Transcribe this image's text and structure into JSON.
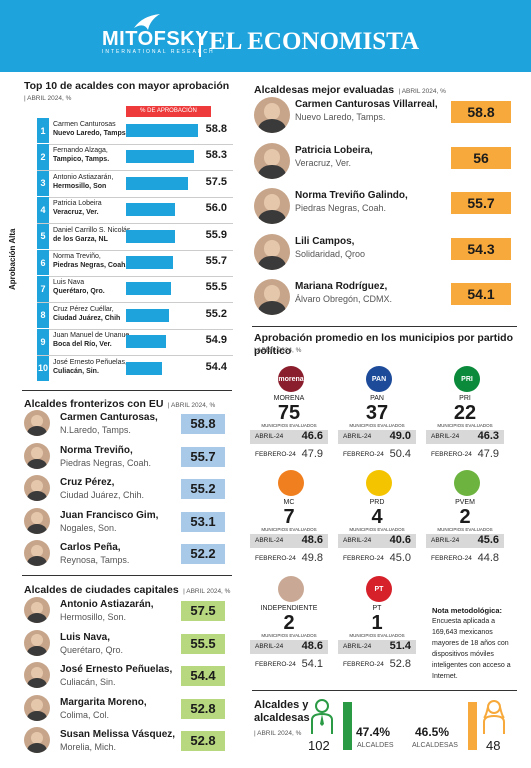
{
  "header": {
    "brand_left": "MITOFSKY",
    "brand_left_sub": "INTERNATIONAL RESEARCH",
    "brand_right": "EL ECONOMISTA"
  },
  "top10": {
    "title": "Top 10 de acaldes con mayor aprobación",
    "subtitle": "ABRIL 2024, %",
    "bar_label": "% DE APROBACIÓN",
    "axis_label": "Aprobación Alta",
    "accent": "#1ea3dc"
  },
  "chart_data": {
    "type": "bar",
    "categories": [
      "Carmen Canturosas, Nuevo Laredo, Tamps.",
      "Fernando Alzaga, Tampico, Tamps.",
      "Antonio Astiazarán, Hermosillo, Son",
      "Patricia Lobeira, Veracruz, Ver.",
      "Daniel Carrillo S. Nicolás, de los Garza, NL",
      "Norma Treviño, Piedras Negras, Coah.",
      "Luis Nava, Querétaro, Qro.",
      "Cruz Pérez Cuéllar, Ciudad Juárez, Chih",
      "Juan Manuel de Unanue, Boca del Río, Ver.",
      "José Ernesto Peñuelas, Culiacán, Sin."
    ],
    "values": [
      58.8,
      58.3,
      57.5,
      56.0,
      55.9,
      55.7,
      55.5,
      55.2,
      54.9,
      54.4
    ],
    "title": "Top 10 de acaldes con mayor aprobación",
    "ylabel": "Aprobación Alta"
  },
  "top10_rows": [
    {
      "rank": "1",
      "line1": "Carmen Canturosas",
      "line2": "Nuevo Laredo, Tamps.",
      "value": "58.8"
    },
    {
      "rank": "2",
      "line1": "Fernando Alzaga,",
      "line2": "Tampico, Tamps.",
      "value": "58.3"
    },
    {
      "rank": "3",
      "line1": "Antonio Astiazarán,",
      "line2": "Hermosillo, Son",
      "value": "57.5"
    },
    {
      "rank": "4",
      "line1": "Patricia Lobeira",
      "line2": "Veracruz, Ver.",
      "value": "56.0"
    },
    {
      "rank": "5",
      "line1": "Daniel Carrillo S. Nicolás",
      "line2": "de los Garza, NL",
      "value": "55.9"
    },
    {
      "rank": "6",
      "line1": "Norma Treviño,",
      "line2": "Piedras Negras, Coah.",
      "value": "55.7"
    },
    {
      "rank": "7",
      "line1": "Luis Nava",
      "line2": "Querétaro, Qro.",
      "value": "55.5"
    },
    {
      "rank": "8",
      "line1": "Cruz Pérez Cuéllar,",
      "line2": "Ciudad Juárez, Chih",
      "value": "55.2"
    },
    {
      "rank": "9",
      "line1": "Juan Manuel de Unanue,",
      "line2": "Boca del Río, Ver.",
      "value": "54.9"
    },
    {
      "rank": "10",
      "line1": "José Ernesto Peñuelas,",
      "line2": "Culiacán, Sin.",
      "value": "54.4"
    }
  ],
  "fronterizos": {
    "title": "Alcaldes fronterizos con EU",
    "subtitle": "ABRIL 2024, %",
    "color": "#a9c9e8",
    "items": [
      {
        "name": "Carmen Canturosas,",
        "city": "N.Laredo, Tamps.",
        "value": "58.8"
      },
      {
        "name": "Norma Treviño,",
        "city": "Piedras Negras, Coah.",
        "value": "55.7"
      },
      {
        "name": "Cruz Pérez,",
        "city": "Ciudad Juárez, Chih.",
        "value": "55.2"
      },
      {
        "name": "Juan Francisco Gim,",
        "city": "Nogales, Son.",
        "value": "53.1"
      },
      {
        "name": "Carlos Peña,",
        "city": "Reynosa, Tamps.",
        "value": "52.2"
      }
    ]
  },
  "capitales": {
    "title": "Alcaldes de ciudades capitales",
    "subtitle": "ABRIL 2024, %",
    "color": "#b7d87f",
    "items": [
      {
        "name": "Antonio Astiazarán,",
        "city": "Hermosillo, Son.",
        "value": "57.5"
      },
      {
        "name": "Luis Nava,",
        "city": "Querétaro, Qro.",
        "value": "55.5"
      },
      {
        "name": "José Ernesto Peñuelas,",
        "city": "Culiacán, Sin.",
        "value": "54.4"
      },
      {
        "name": "Margarita Moreno,",
        "city": "Colima, Col.",
        "value": "52.8"
      },
      {
        "name": "Susan Melissa Vásquez,",
        "city": "Morelia, Mich.",
        "value": "52.8"
      }
    ]
  },
  "alcaldesas": {
    "title": "Alcaldesas mejor evaluadas",
    "subtitle": "ABRIL 2024, %",
    "color": "#f7a93b",
    "items": [
      {
        "name": "Carmen Canturosas Villarreal,",
        "city": "Nuevo Laredo, Tamps.",
        "value": "58.8"
      },
      {
        "name": "Patricia Lobeira,",
        "city": "Veracruz, Ver.",
        "value": "56"
      },
      {
        "name": "Norma Treviño Galindo,",
        "city": "Piedras Negras, Coah.",
        "value": "55.7"
      },
      {
        "name": "Lili Campos,",
        "city": "Solidaridad, Qroo",
        "value": "54.3"
      },
      {
        "name": "Mariana Rodríguez,",
        "city": "Álvaro Obregón, CDMX.",
        "value": "54.1"
      }
    ]
  },
  "partidos": {
    "title": "Aprobación promedio en los municipios por partido político",
    "subtitle": "ABRIL 2024, %",
    "municipios_label": "MUNICIPIOS EVALUADOS",
    "row1_label": "ABRIL-24",
    "row2_label": "FEBRERO-24",
    "items": [
      {
        "logo": "morena",
        "name": "MORENA",
        "count": "75",
        "abril": "46.6",
        "febrero": "47.9",
        "color": "#8b1e2d"
      },
      {
        "logo": "PAN",
        "name": "PAN",
        "count": "37",
        "abril": "49.0",
        "febrero": "50.4",
        "color": "#1d4b9a"
      },
      {
        "logo": "PRI",
        "name": "PRI",
        "count": "22",
        "abril": "46.3",
        "febrero": "47.9",
        "color": "#0a8a3a"
      },
      {
        "logo": "",
        "name": "MC",
        "count": "7",
        "abril": "48.6",
        "febrero": "49.8",
        "color": "#f07f1f"
      },
      {
        "logo": "",
        "name": "PRD",
        "count": "4",
        "abril": "40.6",
        "febrero": "45.0",
        "color": "#f4c400"
      },
      {
        "logo": "",
        "name": "PVEM",
        "count": "2",
        "abril": "45.6",
        "febrero": "44.8",
        "color": "#6db33f"
      },
      {
        "logo": "",
        "name": "INDEPENDIENTE",
        "count": "2",
        "abril": "48.6",
        "febrero": "54.1",
        "color": "#c9a995"
      },
      {
        "logo": "PT",
        "name": "PT",
        "count": "1",
        "abril": "51.4",
        "febrero": "52.8",
        "color": "#d6202a"
      }
    ]
  },
  "nota": {
    "title": "Nota metodológica:",
    "body": "Encuesta aplicada a 169,643 mexicanos mayores de 18 años con dispositivos móviles inteligentes con acceso a Internet."
  },
  "genero": {
    "title_line1": "Alcaldes y",
    "title_line2": "alcaldesas",
    "subtitle": "ABRIL 2024, %",
    "alcaldes_count": "102",
    "alcaldes_pct": "47.4%",
    "alcaldes_label": "ALCALDES",
    "alcaldesas_pct": "46.5%",
    "alcaldesas_label": "ALCALDESAS",
    "alcaldesas_count": "48",
    "alcaldes_color": "#2a9a45",
    "alcaldesas_color": "#f7a93b"
  }
}
